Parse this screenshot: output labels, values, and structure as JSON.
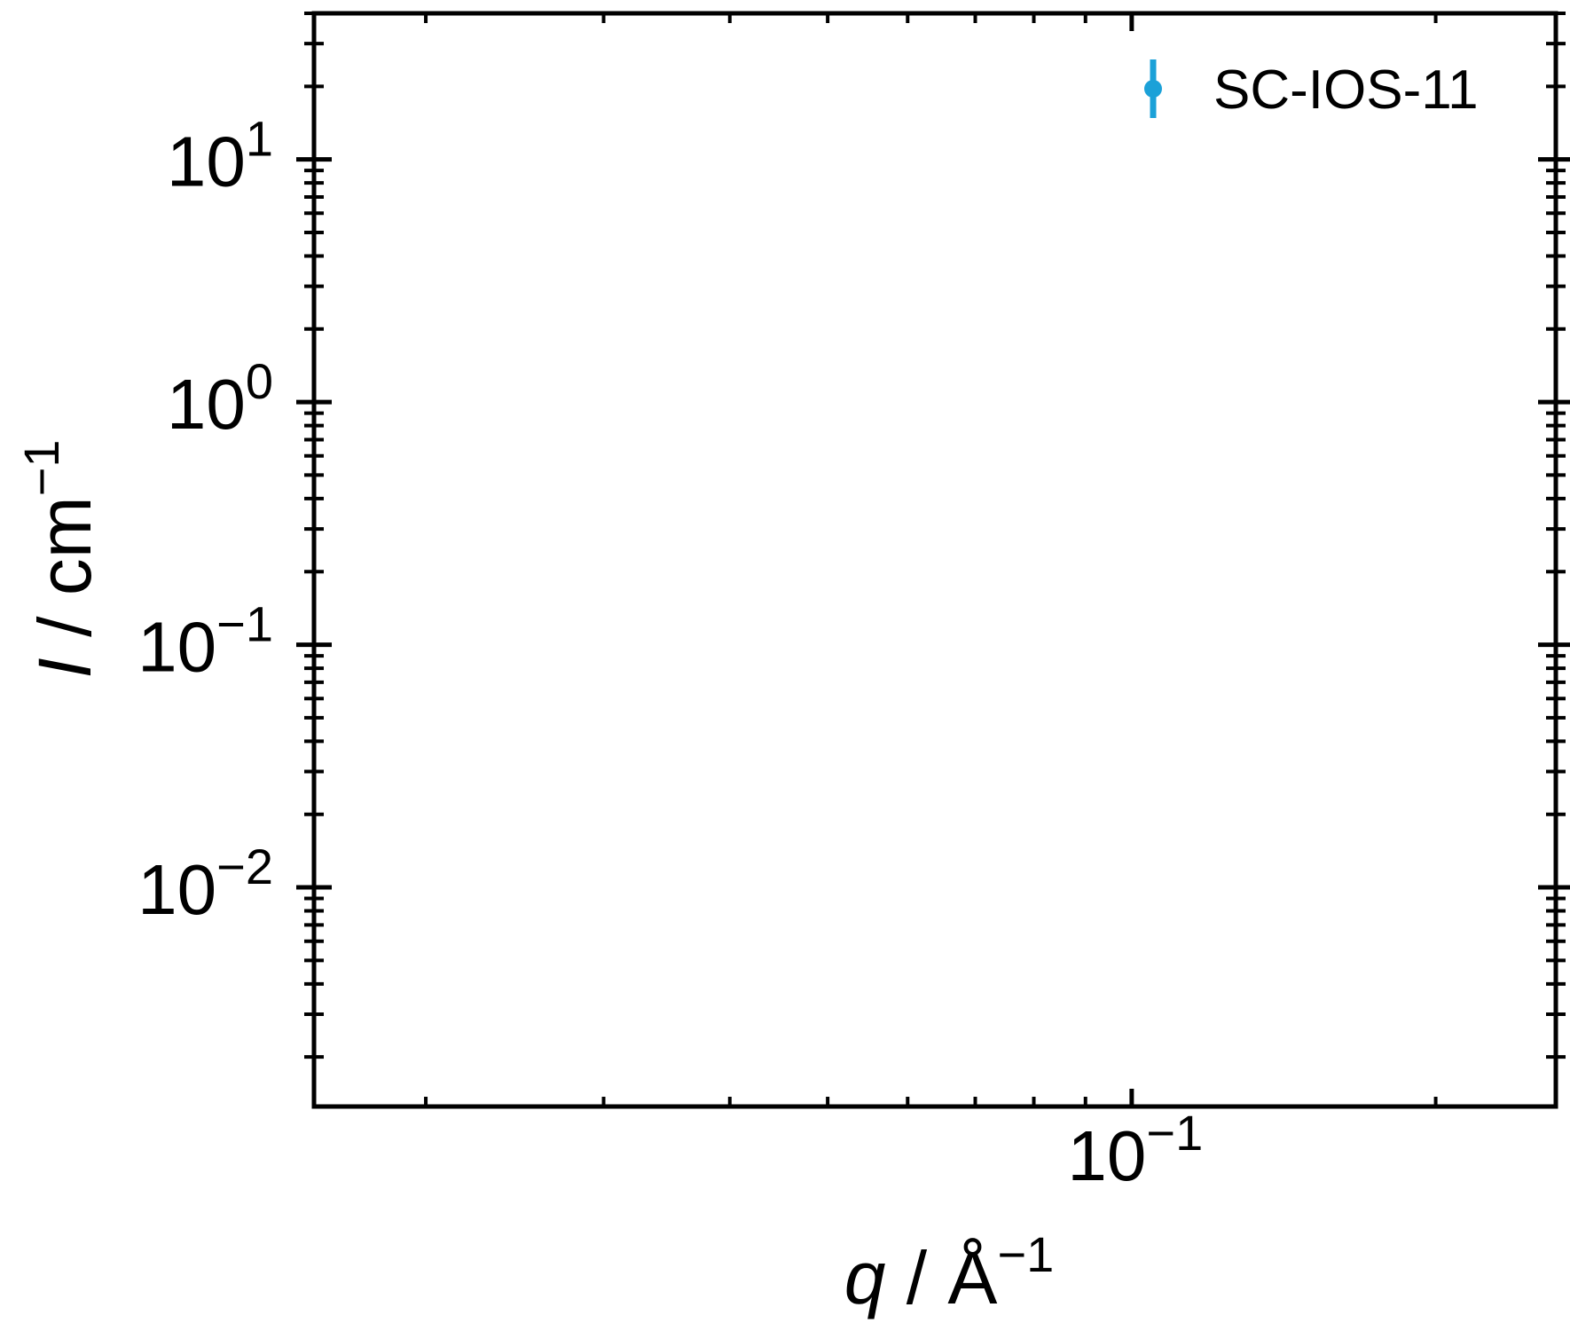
{
  "chart_data": {
    "type": "scatter",
    "xlabel": {
      "var": "q",
      "sep": " / ",
      "unit": "Å",
      "exp": "−1"
    },
    "ylabel": {
      "var": "I",
      "sep": " / ",
      "unit": "cm",
      "exp": "−1"
    },
    "xscale": "log",
    "yscale": "log",
    "xlim": [
      0.0155,
      0.263
    ],
    "ylim": [
      0.00125,
      40
    ],
    "x_ticks": [
      {
        "value": 0.1,
        "base": "10",
        "exp": "−1"
      }
    ],
    "y_ticks": [
      {
        "value": 0.01,
        "base": "10",
        "exp": "−2"
      },
      {
        "value": 0.1,
        "base": "10",
        "exp": "−1"
      },
      {
        "value": 1,
        "base": "10",
        "exp": "0"
      },
      {
        "value": 10,
        "base": "10",
        "exp": "1"
      }
    ],
    "grid": false,
    "legend_position": "top-right",
    "series": [
      {
        "name": "SC-IOS-11",
        "color": "#1ba1d8",
        "marker": "errorbar-point",
        "points": []
      }
    ]
  }
}
